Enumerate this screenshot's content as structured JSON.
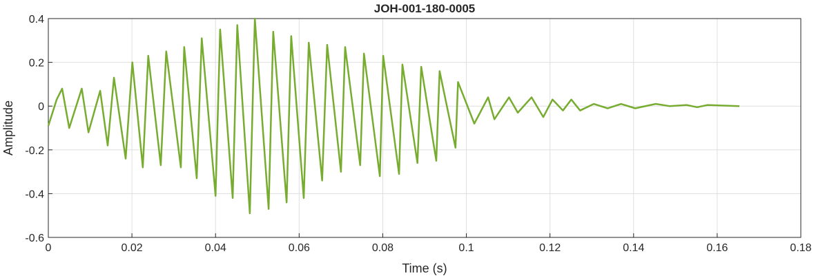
{
  "chart_data": {
    "type": "line",
    "title": "JOH-001-180-0005",
    "xlabel": "Time (s)",
    "ylabel": "Amplitude",
    "x": [
      0,
      0.002,
      0.0033,
      0.005,
      0.008,
      0.0096,
      0.0124,
      0.0142,
      0.0157,
      0.0185,
      0.0201,
      0.0226,
      0.0239,
      0.0269,
      0.0282,
      0.0317,
      0.0325,
      0.0355,
      0.0367,
      0.04,
      0.0411,
      0.0441,
      0.0452,
      0.0482,
      0.0494,
      0.0527,
      0.0538,
      0.057,
      0.0581,
      0.0611,
      0.0623,
      0.0655,
      0.0667,
      0.07,
      0.071,
      0.0746,
      0.0755,
      0.0793,
      0.0801,
      0.0839,
      0.0847,
      0.0883,
      0.0892,
      0.0928,
      0.0936,
      0.0974,
      0.098,
      0.1019,
      0.1052,
      0.1067,
      0.1102,
      0.1123,
      0.1156,
      0.1184,
      0.1206,
      0.1231,
      0.1251,
      0.1272,
      0.1305,
      0.1338,
      0.137,
      0.1404,
      0.1453,
      0.1486,
      0.1527,
      0.1552,
      0.1577,
      0.1653
    ],
    "series": [
      {
        "name": "Amplitude",
        "color": "#77ac30",
        "values": [
          -0.09,
          0.03,
          0.08,
          -0.1,
          0.08,
          -0.12,
          0.07,
          -0.18,
          0.13,
          -0.24,
          0.2,
          -0.28,
          0.23,
          -0.27,
          0.25,
          -0.28,
          0.27,
          -0.33,
          0.31,
          -0.41,
          0.35,
          -0.42,
          0.37,
          -0.49,
          0.4,
          -0.47,
          0.34,
          -0.44,
          0.32,
          -0.42,
          0.29,
          -0.34,
          0.28,
          -0.3,
          0.27,
          -0.27,
          0.24,
          -0.32,
          0.23,
          -0.31,
          0.19,
          -0.26,
          0.18,
          -0.25,
          0.16,
          -0.19,
          0.11,
          -0.08,
          0.04,
          -0.06,
          0.04,
          -0.03,
          0.04,
          -0.05,
          0.03,
          -0.02,
          0.03,
          -0.02,
          0.01,
          -0.01,
          0.01,
          -0.01,
          0.01,
          0,
          0.005,
          -0.005,
          0.005,
          0
        ]
      }
    ],
    "xlim": [
      0,
      0.18
    ],
    "xticks": [
      0,
      0.02,
      0.04,
      0.06,
      0.08,
      0.1,
      0.12,
      0.14,
      0.16,
      0.18
    ],
    "ylim": [
      -0.6,
      0.4
    ],
    "yticks": [
      -0.6,
      -0.4,
      -0.2,
      0,
      0.2,
      0.4
    ],
    "grid": true
  }
}
